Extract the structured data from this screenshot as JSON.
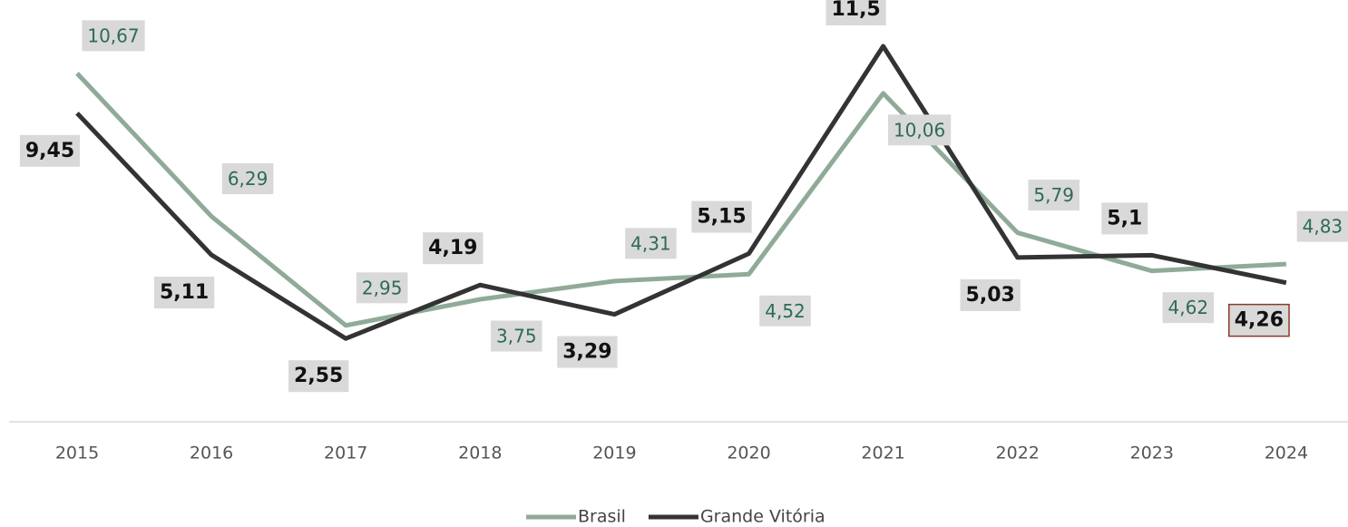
{
  "chart_data": {
    "type": "line",
    "categories": [
      "2015",
      "2016",
      "2017",
      "2018",
      "2019",
      "2020",
      "2021",
      "2022",
      "2023",
      "2024"
    ],
    "series": [
      {
        "name": "Brasil",
        "color": "#8fab98",
        "values": [
          10.67,
          6.29,
          2.95,
          3.75,
          4.31,
          4.52,
          10.06,
          5.79,
          4.62,
          4.83
        ],
        "value_labels": [
          "10,67",
          "6,29",
          "2,95",
          "3,75",
          "4,31",
          "4,52",
          "10,06",
          "5,79",
          "4,62",
          "4,83"
        ]
      },
      {
        "name": "Grande Vitória",
        "color": "#333333",
        "values": [
          9.45,
          5.11,
          2.55,
          4.19,
          3.29,
          5.15,
          11.5,
          5.03,
          5.1,
          4.26
        ],
        "value_labels": [
          "9,45",
          "5,11",
          "2,55",
          "4,19",
          "3,29",
          "5,15",
          "11,5",
          "5,03",
          "5,1",
          "4,26"
        ]
      }
    ],
    "ylim": [
      0,
      12
    ],
    "legend": "bottom"
  }
}
